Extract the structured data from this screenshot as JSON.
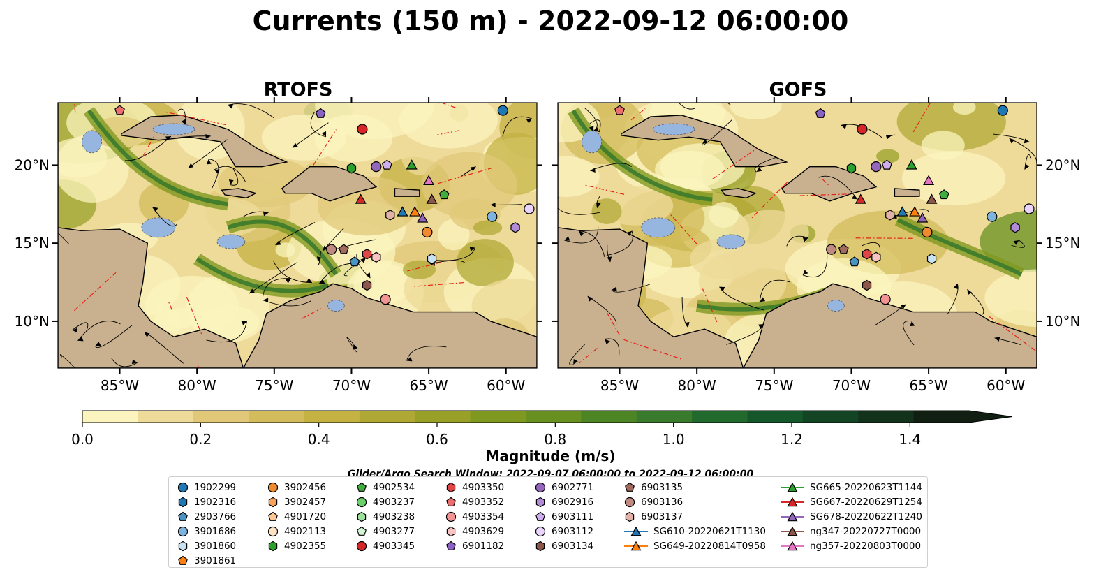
{
  "title": "Currents (150 m) - 2022-09-12 06:00:00",
  "panels": [
    {
      "title": "RTOFS"
    },
    {
      "title": "GOFS"
    }
  ],
  "axes": {
    "x_ticks": [
      "85°W",
      "80°W",
      "75°W",
      "70°W",
      "65°W",
      "60°W"
    ],
    "y_ticks": [
      "20°N",
      "15°N",
      "10°N"
    ]
  },
  "colorbar": {
    "label": "Magnitude (m/s)",
    "ticks": [
      "0.0",
      "0.2",
      "0.4",
      "0.6",
      "0.8",
      "1.0",
      "1.2",
      "1.4"
    ],
    "colors": [
      "#fbf4be",
      "#eedb9a",
      "#e0c878",
      "#d3bc5b",
      "#c4b243",
      "#b0a834",
      "#98a028",
      "#7f9820",
      "#679020",
      "#4e8524",
      "#3a7a2c",
      "#22692e",
      "#15572a",
      "#134424",
      "#12321c",
      "#111f13"
    ]
  },
  "search_window": "Glider/Argo Search Window: 2022-09-07 06:00:00 to 2022-09-12 06:00:00",
  "legend": {
    "columns": [
      [
        {
          "label": "1902299",
          "shape": "circle",
          "color": "#1f77b4"
        },
        {
          "label": "1902316",
          "shape": "hexagon",
          "color": "#1f77b4"
        },
        {
          "label": "2903766",
          "shape": "pentagon",
          "color": "#4a94c4"
        },
        {
          "label": "3901686",
          "shape": "circle",
          "color": "#7eb3de"
        },
        {
          "label": "3901860",
          "shape": "hexagon",
          "color": "#c7e2f3"
        },
        {
          "label": "3901861",
          "shape": "pentagon",
          "color": "#ff7f0e"
        }
      ],
      [
        {
          "label": "3902456",
          "shape": "circle",
          "color": "#f08a2e"
        },
        {
          "label": "3902457",
          "shape": "hexagon",
          "color": "#f7a35c"
        },
        {
          "label": "4901720",
          "shape": "pentagon",
          "color": "#fcc794"
        },
        {
          "label": "4902113",
          "shape": "circle",
          "color": "#fde2c4"
        },
        {
          "label": "4902355",
          "shape": "hexagon",
          "color": "#2ca02c"
        }
      ],
      [
        {
          "label": "4902534",
          "shape": "pentagon",
          "color": "#3fae3f"
        },
        {
          "label": "4903237",
          "shape": "circle",
          "color": "#6bcf6b"
        },
        {
          "label": "4903238",
          "shape": "hexagon",
          "color": "#9ce29c"
        },
        {
          "label": "4903277",
          "shape": "pentagon",
          "color": "#d3f5d3"
        },
        {
          "label": "4903345",
          "shape": "circle",
          "color": "#d62728"
        }
      ],
      [
        {
          "label": "4903350",
          "shape": "hexagon",
          "color": "#e04646"
        },
        {
          "label": "4903352",
          "shape": "pentagon",
          "color": "#eb6f6f"
        },
        {
          "label": "4903354",
          "shape": "circle",
          "color": "#f29494"
        },
        {
          "label": "4903629",
          "shape": "hexagon",
          "color": "#f9c3c3"
        },
        {
          "label": "6901182",
          "shape": "pentagon",
          "color": "#8a62c2"
        }
      ],
      [
        {
          "label": "6902771",
          "shape": "circle",
          "color": "#9467bd"
        },
        {
          "label": "6902916",
          "shape": "hexagon",
          "color": "#b18bd8"
        },
        {
          "label": "6903111",
          "shape": "pentagon",
          "color": "#cfaeee"
        },
        {
          "label": "6903112",
          "shape": "circle",
          "color": "#ebd4fb"
        },
        {
          "label": "6903134",
          "shape": "hexagon",
          "color": "#8c564b"
        }
      ],
      [
        {
          "label": "6903135",
          "shape": "pentagon",
          "color": "#a06a5f"
        },
        {
          "label": "6903136",
          "shape": "circle",
          "color": "#c08a80"
        },
        {
          "label": "6903137",
          "shape": "hexagon",
          "color": "#e0b2a8"
        },
        {
          "label": "SG610-20220621T1130",
          "shape": "line-triangle",
          "color": "#1f77b4"
        },
        {
          "label": "SG649-20220814T0958",
          "shape": "line-triangle",
          "color": "#ff7f0e"
        }
      ],
      [
        {
          "label": "SG665-20220623T1144",
          "shape": "line-triangle",
          "color": "#2ca02c"
        },
        {
          "label": "SG667-20220629T1254",
          "shape": "line-triangle",
          "color": "#d62728"
        },
        {
          "label": "SG678-20220622T1240",
          "shape": "line-triangle",
          "color": "#9467bd"
        },
        {
          "label": "ng347-20220727T0000",
          "shape": "line-triangle",
          "color": "#8c564b"
        },
        {
          "label": "ng357-20220803T0000",
          "shape": "line-triangle",
          "color": "#e377c2"
        }
      ]
    ]
  },
  "chart_data": {
    "type": "heatmap",
    "variable": "current magnitude at 150 m with streamlines",
    "x_range_lon": [
      -89,
      -58
    ],
    "y_range_lat": [
      7,
      24
    ],
    "value_range": [
      0,
      1.5
    ],
    "colorbar_extend": "max",
    "observation_markers": [
      {
        "label": "1902299",
        "lon": -60.2,
        "lat": 23.5
      },
      {
        "label": "6901182",
        "lon": -72.0,
        "lat": 23.3
      },
      {
        "label": "4903345",
        "lon": -69.3,
        "lat": 22.3
      },
      {
        "label": "4902355",
        "lon": -70.0,
        "lat": 19.8
      },
      {
        "label": "6902771",
        "lon": -68.4,
        "lat": 19.9
      },
      {
        "label": "6903111",
        "lon": -67.7,
        "lat": 20.0
      },
      {
        "label": "SG665-20220623T1144",
        "lon": -66.1,
        "lat": 20.0
      },
      {
        "label": "ng357-20220803T0000",
        "lon": -65.0,
        "lat": 19.0
      },
      {
        "label": "4902534",
        "lon": -64.0,
        "lat": 18.1
      },
      {
        "label": "ng347-20220727T0000",
        "lon": -64.8,
        "lat": 17.8
      },
      {
        "label": "SG667-20220629T1254",
        "lon": -69.4,
        "lat": 17.8
      },
      {
        "label": "SG610-20220621T1130",
        "lon": -66.7,
        "lat": 17.0
      },
      {
        "label": "SG649-20220814T0958",
        "lon": -65.9,
        "lat": 17.0
      },
      {
        "label": "SG678-20220622T1240",
        "lon": -65.4,
        "lat": 16.6
      },
      {
        "label": "3902456",
        "lon": -65.1,
        "lat": 15.7
      },
      {
        "label": "6903112",
        "lon": -58.5,
        "lat": 17.2
      },
      {
        "label": "3901686",
        "lon": -60.9,
        "lat": 16.7
      },
      {
        "label": "6902916",
        "lon": -59.4,
        "lat": 16.0
      },
      {
        "label": "3901860",
        "lon": -64.8,
        "lat": 14.0
      },
      {
        "label": "6903136",
        "lon": -71.3,
        "lat": 14.6
      },
      {
        "label": "6903135",
        "lon": -70.5,
        "lat": 14.6
      },
      {
        "label": "4903350",
        "lon": -69.0,
        "lat": 14.3
      },
      {
        "label": "4903629",
        "lon": -68.4,
        "lat": 14.1
      },
      {
        "label": "2903766",
        "lon": -69.8,
        "lat": 13.8
      },
      {
        "label": "6903134",
        "lon": -69.0,
        "lat": 12.3
      },
      {
        "label": "4903354",
        "lon": -67.8,
        "lat": 11.4
      },
      {
        "label": "6903137",
        "lon": -67.5,
        "lat": 16.8
      },
      {
        "label": "4903352",
        "lon": -85.0,
        "lat": 23.5
      }
    ]
  }
}
